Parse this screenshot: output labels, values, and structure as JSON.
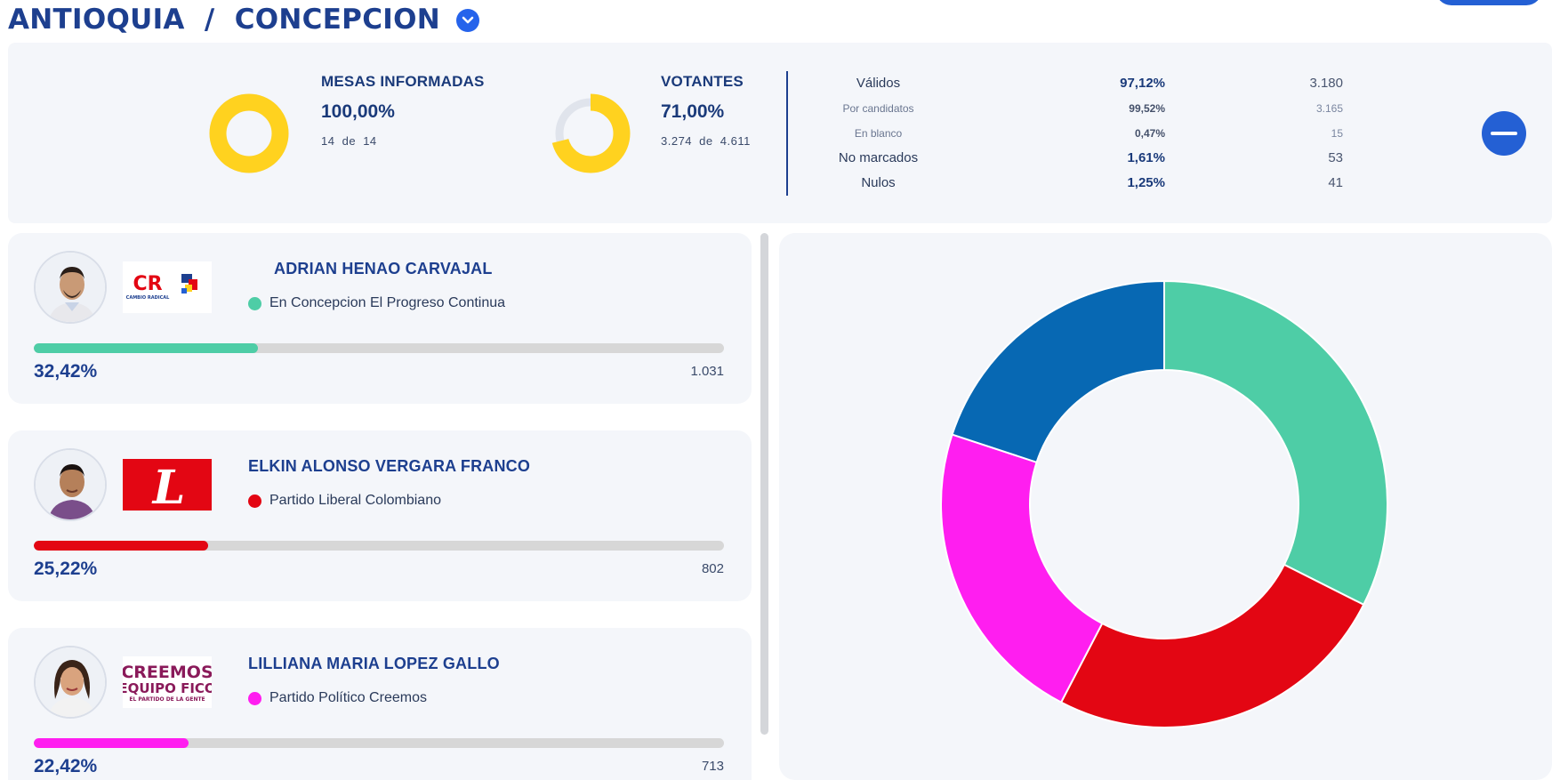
{
  "header": {
    "title": "ANTIOQUIA  /  CONCEPCION"
  },
  "summary": {
    "mesas": {
      "title": "MESAS INFORMADAS",
      "pct": "100,00%",
      "count_a": "14",
      "de": "de",
      "count_b": "14",
      "fraction": 1.0
    },
    "votantes": {
      "title": "VOTANTES",
      "pct": "71,00%",
      "count_a": "3.274",
      "de": "de",
      "count_b": "4.611",
      "fraction": 0.71
    },
    "table": [
      {
        "label": "Válidos",
        "pct": "97,12%",
        "count": "3.180",
        "kind": "main"
      },
      {
        "label": "Por candidatos",
        "pct": "99,52%",
        "count": "3.165",
        "kind": "sub"
      },
      {
        "label": "En blanco",
        "pct": "0,47%",
        "count": "15",
        "kind": "sub"
      },
      {
        "label": "No marcados",
        "pct": "1,61%",
        "count": "53",
        "kind": "main"
      },
      {
        "label": "Nulos",
        "pct": "1,25%",
        "count": "41",
        "kind": "main"
      }
    ]
  },
  "candidates": [
    {
      "name": "ADRIAN HENAO CARVAJAL",
      "party": "En Concepcion El Progreso Continua",
      "pct": "32,42%",
      "votes": "1.031",
      "fraction": 0.3242,
      "color": "#4ecda6",
      "logo": "cambio-radical-logo"
    },
    {
      "name": "ELKIN ALONSO VERGARA FRANCO",
      "party": "Partido Liberal Colombiano",
      "pct": "25,22%",
      "votes": "802",
      "fraction": 0.2522,
      "color": "#e30613",
      "logo": "partido-liberal-logo"
    },
    {
      "name": "LILLIANA MARIA LOPEZ GALLO",
      "party": "Partido Político Creemos",
      "pct": "22,42%",
      "votes": "713",
      "fraction": 0.2242,
      "color": "#ff1ef0",
      "logo": "creemos-logo"
    }
  ],
  "logos": {
    "cr_text": "CR",
    "cr_sub": "CAMBIO RADICAL",
    "liberal_letter": "L",
    "creemos_line1": "CREEMOS",
    "creemos_line2": "EQUIPO FICO",
    "creemos_line3": "EL PARTIDO DE LA GENTE"
  },
  "chart_data": {
    "type": "pie",
    "series": [
      {
        "value": 32.42,
        "color": "#4ecda6"
      },
      {
        "value": 25.22,
        "color": "#e30613"
      },
      {
        "value": 22.42,
        "color": "#ff1ef0"
      },
      {
        "value": 19.94,
        "color": "#0768b3"
      }
    ]
  }
}
